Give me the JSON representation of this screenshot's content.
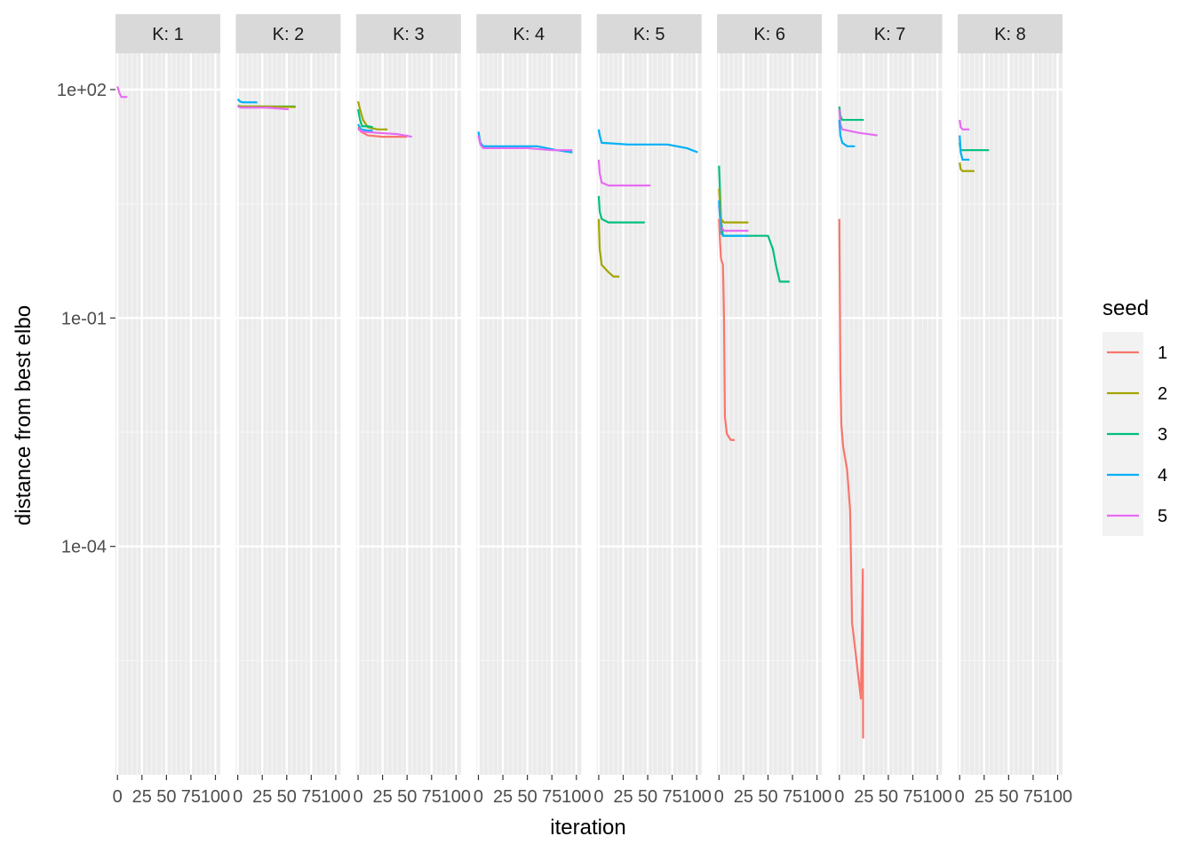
{
  "chart_data": {
    "type": "line",
    "xlabel": "iteration",
    "ylabel": "distance from best elbo",
    "y_scale": "log10",
    "ylim": [
      1e-07,
      300
    ],
    "xlim": [
      -2,
      105
    ],
    "x_ticks": [
      0,
      25,
      50,
      75,
      100
    ],
    "x_tick_labels": [
      "0",
      "25",
      "50",
      "75",
      "100"
    ],
    "y_ticks": [
      100,
      0.1,
      0.0001
    ],
    "y_tick_labels": [
      "1e+02",
      "1e-01",
      "1e-04"
    ],
    "grid": true,
    "legend": {
      "title": "seed",
      "position": "right",
      "entries": [
        {
          "label": "1",
          "color": "#F8766D"
        },
        {
          "label": "2",
          "color": "#A3A500"
        },
        {
          "label": "3",
          "color": "#00BF7D"
        },
        {
          "label": "4",
          "color": "#00B0F6"
        },
        {
          "label": "5",
          "color": "#E76BF3"
        }
      ]
    },
    "panels": [
      {
        "label": "K: 1",
        "series": [
          {
            "seed": "5",
            "x": [
              0,
              2,
              4,
              10
            ],
            "y": [
              110,
              90,
              80,
              80
            ]
          }
        ]
      },
      {
        "label": "K: 2",
        "series": [
          {
            "seed": "4",
            "x": [
              0,
              2,
              5,
              20
            ],
            "y": [
              75,
              70,
              68,
              68
            ]
          },
          {
            "seed": "3",
            "x": [
              0,
              3,
              40,
              59
            ],
            "y": [
              62,
              60,
              60,
              60
            ]
          },
          {
            "seed": "2",
            "x": [
              0,
              3,
              30,
              59
            ],
            "y": [
              61,
              60,
              60,
              59
            ]
          },
          {
            "seed": "5",
            "x": [
              0,
              3,
              30,
              52
            ],
            "y": [
              60,
              58,
              58,
              55
            ]
          }
        ]
      },
      {
        "label": "K: 3",
        "series": [
          {
            "seed": "2",
            "x": [
              0,
              2,
              5,
              10,
              20,
              30
            ],
            "y": [
              70,
              55,
              40,
              32,
              30,
              30
            ]
          },
          {
            "seed": "3",
            "x": [
              0,
              2,
              4,
              10,
              15
            ],
            "y": [
              55,
              40,
              33,
              33,
              32
            ]
          },
          {
            "seed": "4",
            "x": [
              0,
              3,
              10,
              15
            ],
            "y": [
              35,
              30,
              29,
              29
            ]
          },
          {
            "seed": "1",
            "x": [
              0,
              3,
              10,
              25,
              50
            ],
            "y": [
              32,
              28,
              25,
              24,
              24
            ]
          },
          {
            "seed": "5",
            "x": [
              0,
              5,
              20,
              40,
              55
            ],
            "y": [
              30,
              28,
              27,
              26,
              24
            ]
          }
        ]
      },
      {
        "label": "K: 4",
        "series": [
          {
            "seed": "4",
            "x": [
              0,
              2,
              5,
              30,
              60,
              80,
              96
            ],
            "y": [
              28,
              20,
              18,
              18,
              18,
              16,
              15
            ]
          },
          {
            "seed": "5",
            "x": [
              0,
              2,
              5,
              20,
              50,
              75,
              96
            ],
            "y": [
              25,
              19,
              17,
              17,
              17,
              16,
              16
            ]
          }
        ]
      },
      {
        "label": "K: 5",
        "series": [
          {
            "seed": "4",
            "x": [
              0,
              1,
              3,
              30,
              70,
              90,
              101
            ],
            "y": [
              30,
              25,
              20,
              19,
              19,
              17,
              15
            ]
          },
          {
            "seed": "5",
            "x": [
              0,
              1,
              3,
              10,
              53
            ],
            "y": [
              12,
              8,
              6,
              5.5,
              5.5
            ]
          },
          {
            "seed": "3",
            "x": [
              0,
              1,
              3,
              10,
              47
            ],
            "y": [
              4,
              2.5,
              2,
              1.8,
              1.8
            ]
          },
          {
            "seed": "2",
            "x": [
              0,
              1,
              3,
              10,
              15,
              21
            ],
            "y": [
              2,
              0.8,
              0.5,
              0.4,
              0.35,
              0.35
            ]
          }
        ]
      },
      {
        "label": "K: 6",
        "series": [
          {
            "seed": "3",
            "x": [
              0,
              2,
              4,
              30,
              50,
              55,
              58,
              62,
              72
            ],
            "y": [
              10,
              2,
              1.2,
              1.2,
              1.2,
              0.8,
              0.5,
              0.3,
              0.3
            ]
          },
          {
            "seed": "2",
            "x": [
              0,
              2,
              5,
              30
            ],
            "y": [
              5,
              2,
              1.8,
              1.8
            ]
          },
          {
            "seed": "5",
            "x": [
              0,
              2,
              5,
              30
            ],
            "y": [
              3,
              1.6,
              1.4,
              1.4
            ]
          },
          {
            "seed": "4",
            "x": [
              0,
              2,
              5,
              30
            ],
            "y": [
              3.5,
              1.3,
              1.2,
              1.2
            ]
          },
          {
            "seed": "1",
            "x": [
              0,
              1,
              2,
              4,
              5,
              6,
              8,
              12,
              16
            ],
            "y": [
              2,
              1,
              0.6,
              0.5,
              0.12,
              0.005,
              0.003,
              0.0025,
              0.0025
            ]
          }
        ]
      },
      {
        "label": "K: 7",
        "series": [
          {
            "seed": "3",
            "x": [
              0,
              1,
              3,
              25
            ],
            "y": [
              60,
              45,
              40,
              40
            ]
          },
          {
            "seed": "5",
            "x": [
              0,
              1,
              3,
              20,
              39
            ],
            "y": [
              55,
              35,
              30,
              27,
              25
            ]
          },
          {
            "seed": "4",
            "x": [
              0,
              1,
              3,
              8,
              16
            ],
            "y": [
              40,
              25,
              20,
              18,
              18
            ]
          },
          {
            "seed": "1",
            "x": [
              0,
              1,
              2,
              4,
              8,
              11,
              13,
              22,
              24,
              24.3
            ],
            "y": [
              2,
              0.02,
              0.004,
              0.002,
              0.001,
              0.0003,
              1e-05,
              1e-06,
              5e-05,
              3e-07
            ]
          }
        ]
      },
      {
        "label": "K: 8",
        "series": [
          {
            "seed": "3",
            "x": [
              0,
              1,
              3,
              30
            ],
            "y": [
              20,
              16,
              16,
              16
            ]
          },
          {
            "seed": "5",
            "x": [
              0,
              1,
              3,
              10
            ],
            "y": [
              40,
              32,
              30,
              30
            ]
          },
          {
            "seed": "4",
            "x": [
              0,
              1,
              3,
              10
            ],
            "y": [
              25,
              15,
              12,
              12
            ]
          },
          {
            "seed": "2",
            "x": [
              0,
              1,
              3,
              15
            ],
            "y": [
              11,
              9,
              8.5,
              8.5
            ]
          }
        ]
      }
    ]
  }
}
